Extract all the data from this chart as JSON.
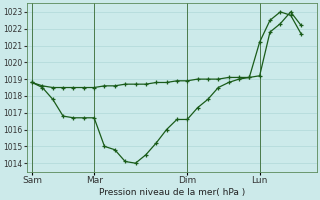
{
  "xlabel": "Pression niveau de la mer( hPa )",
  "background_color": "#cceaea",
  "grid_color": "#b0d8d8",
  "line_color": "#1a5c1a",
  "ylim": [
    1013.5,
    1023.5
  ],
  "yticks": [
    1014,
    1015,
    1016,
    1017,
    1018,
    1019,
    1020,
    1021,
    1022,
    1023
  ],
  "x_tick_labels": [
    "Sam",
    "Mar",
    "Dim",
    "Lun"
  ],
  "x_tick_positions": [
    0,
    6,
    15,
    22
  ],
  "vline_positions": [
    0,
    6,
    15,
    22
  ],
  "xlim": [
    -0.5,
    27.5
  ],
  "line1_x": [
    0,
    1,
    2,
    3,
    4,
    5,
    6,
    7,
    8,
    9,
    10,
    11,
    12,
    13,
    14,
    15,
    16,
    17,
    18,
    19,
    20,
    21,
    22,
    23,
    24,
    25,
    26
  ],
  "line1_y": [
    1018.8,
    1018.5,
    1017.8,
    1016.8,
    1016.7,
    1016.7,
    1016.7,
    1015.0,
    1014.8,
    1014.1,
    1014.0,
    1014.5,
    1015.2,
    1016.0,
    1016.6,
    1016.6,
    1017.3,
    1017.8,
    1018.5,
    1018.8,
    1019.0,
    1019.1,
    1019.2,
    1021.8,
    1022.3,
    1023.0,
    1022.2
  ],
  "line2_x": [
    0,
    1,
    2,
    3,
    4,
    5,
    6,
    7,
    8,
    9,
    10,
    11,
    12,
    13,
    14,
    15,
    16,
    17,
    18,
    19,
    20,
    21,
    22,
    23,
    24,
    25,
    26
  ],
  "line2_y": [
    1018.8,
    1018.6,
    1018.5,
    1018.5,
    1018.5,
    1018.5,
    1018.5,
    1018.6,
    1018.6,
    1018.7,
    1018.7,
    1018.7,
    1018.8,
    1018.8,
    1018.9,
    1018.9,
    1019.0,
    1019.0,
    1019.0,
    1019.1,
    1019.1,
    1019.1,
    1021.2,
    1022.5,
    1023.0,
    1022.8,
    1021.7
  ],
  "figsize": [
    3.2,
    2.0
  ],
  "dpi": 100
}
